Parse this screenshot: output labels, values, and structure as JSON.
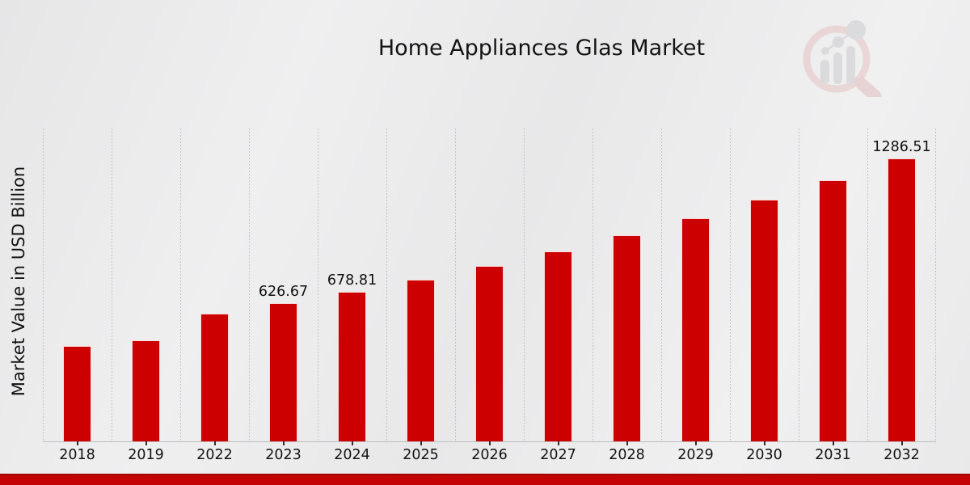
{
  "chart_data": {
    "type": "bar",
    "title": "Home Appliances Glas Market",
    "xlabel": "",
    "ylabel": "Market Value in USD Billion",
    "categories": [
      "2018",
      "2019",
      "2022",
      "2023",
      "2024",
      "2025",
      "2026",
      "2027",
      "2028",
      "2029",
      "2030",
      "2031",
      "2032"
    ],
    "values": [
      432.0,
      458.0,
      578.5,
      626.67,
      678.81,
      735.3,
      796.5,
      862.8,
      934.6,
      1012.3,
      1096.5,
      1187.7,
      1286.51
    ],
    "bar_labels": [
      "",
      "",
      "",
      "626.67",
      "678.81",
      "",
      "",
      "",
      "",
      "",
      "",
      "",
      "1286.51"
    ],
    "ylim": [
      0,
      1421
    ],
    "y_tick_labels_shown": false,
    "grid": "vertical-dotted",
    "legend": "none"
  },
  "watermark": {
    "icon": "magnifier-bar-chart-logo-watermark"
  },
  "colors": {
    "bar": "#cc0000",
    "accent_band": "#c40404",
    "accent_band_edge": "#9e0202",
    "gridline": "#c3c3c5",
    "text": "#141414",
    "logo_ring": "#e3b8b8",
    "logo_gray": "#c4c4c8"
  }
}
